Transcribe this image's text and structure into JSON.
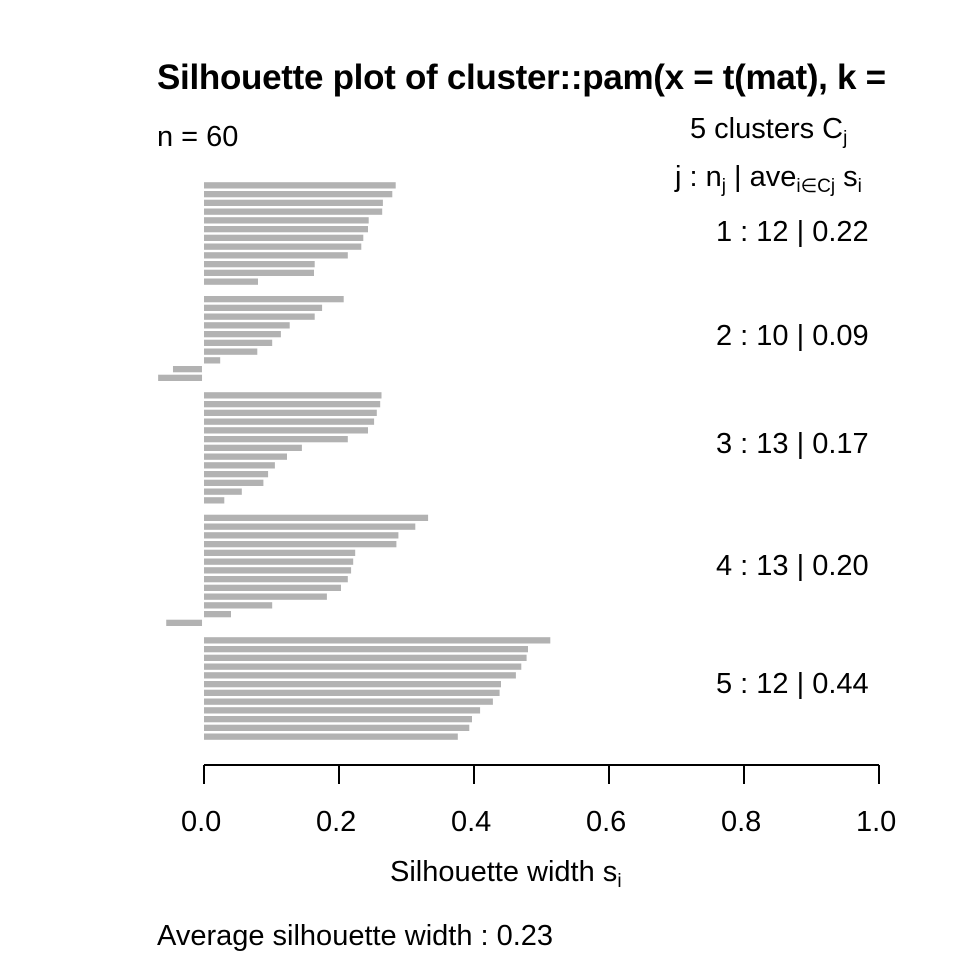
{
  "chart_data": {
    "type": "bar",
    "orientation": "horizontal",
    "title": "Silhouette plot of cluster::pam(x = t(mat), k = ...",
    "xlabel": "Silhouette width s_i",
    "ylabel": "",
    "xlim": [
      0,
      1
    ],
    "x_ticks": [
      "0.0",
      "0.2",
      "0.4",
      "0.6",
      "0.8",
      "1.0"
    ],
    "grid": false,
    "bar_color": "#b2b2b2",
    "n": 60,
    "num_clusters": 5,
    "average_silhouette_width": 0.23,
    "clusters": [
      {
        "j": 1,
        "n": 12,
        "ave": 0.22,
        "values": [
          0.284,
          0.279,
          0.265,
          0.264,
          0.244,
          0.243,
          0.236,
          0.233,
          0.213,
          0.164,
          0.163,
          0.08
        ]
      },
      {
        "j": 2,
        "n": 10,
        "ave": 0.09,
        "values": [
          0.207,
          0.175,
          0.164,
          0.127,
          0.114,
          0.101,
          0.079,
          0.024,
          -0.043,
          -0.065
        ]
      },
      {
        "j": 3,
        "n": 13,
        "ave": 0.17,
        "values": [
          0.263,
          0.261,
          0.256,
          0.252,
          0.243,
          0.213,
          0.145,
          0.123,
          0.105,
          0.095,
          0.088,
          0.056,
          0.03
        ]
      },
      {
        "j": 4,
        "n": 13,
        "ave": 0.2,
        "values": [
          0.332,
          0.313,
          0.288,
          0.285,
          0.224,
          0.221,
          0.218,
          0.213,
          0.203,
          0.182,
          0.101,
          0.04,
          -0.053
        ]
      },
      {
        "j": 5,
        "n": 12,
        "ave": 0.44,
        "values": [
          0.513,
          0.48,
          0.478,
          0.47,
          0.462,
          0.44,
          0.438,
          0.428,
          0.409,
          0.397,
          0.393,
          0.376
        ]
      }
    ]
  },
  "header": {
    "title": "Silhouette plot of cluster::pam(x = t(mat), k = ",
    "n_label": "n = 60"
  },
  "legend": {
    "line1_prefix": "5  clusters  C",
    "line1_sub": "j",
    "line2_a": "j :  n",
    "line2_sub1": "j",
    "line2_b": " | ave",
    "line2_sub2": "i∈Cj",
    "line2_c": "  s",
    "line2_sub3": "i",
    "rows": [
      "1 :   12  |  0.22",
      "2 :   10  |  0.09",
      "3 :   13  |  0.17",
      "4 :   13  |  0.20",
      "5 :   12  |  0.44"
    ]
  },
  "axis": {
    "xlabel_main": "Silhouette width s",
    "xlabel_sub": "i"
  },
  "footer": {
    "average_label": "Average silhouette width :  0.23"
  }
}
